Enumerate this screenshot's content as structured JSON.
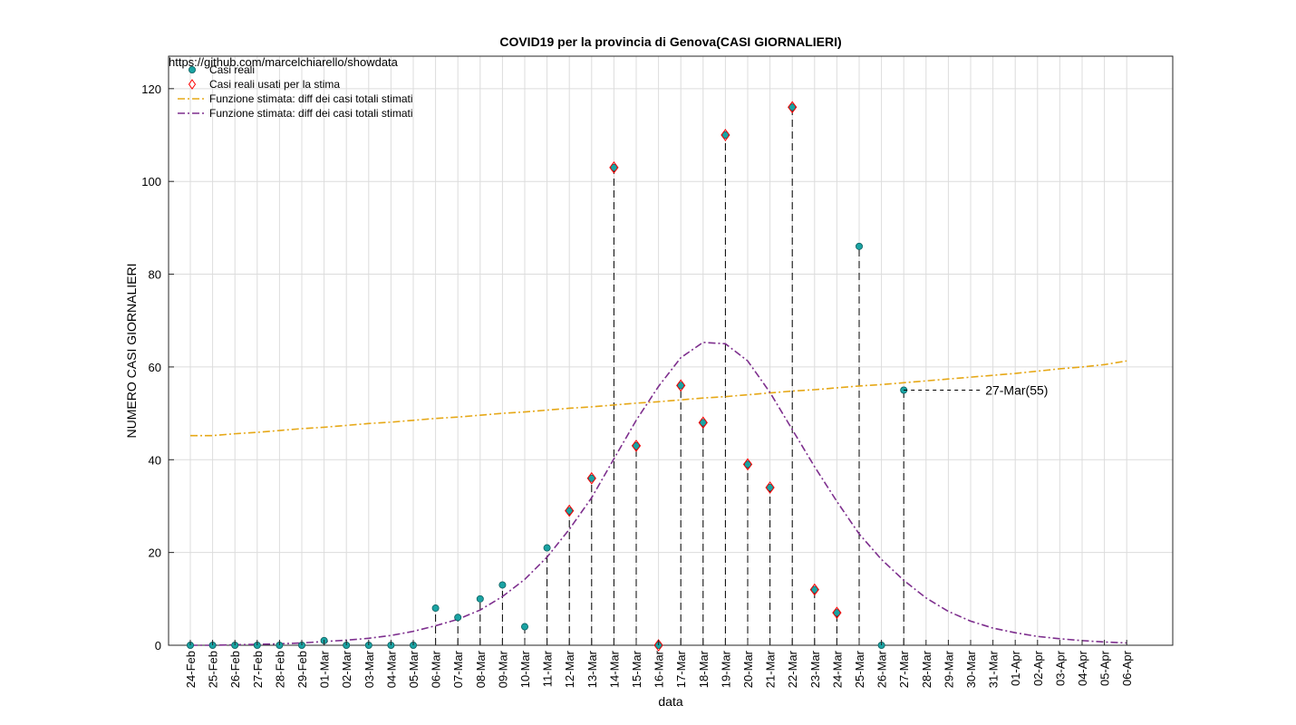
{
  "chart_data": {
    "type": "scatter",
    "title": "COVID19 per la provincia di Genova(CASI GIORNALIERI)",
    "xlabel": "data",
    "ylabel": "NUMERO CASI GIORNALIERI",
    "watermark": "https://github.com/marcelchiarello/showdata",
    "ylim": [
      0,
      127
    ],
    "yticks": [
      0,
      20,
      40,
      60,
      80,
      100,
      120
    ],
    "grid": true,
    "legend_position": "top-left",
    "categories": [
      "24-Feb",
      "25-Feb",
      "26-Feb",
      "27-Feb",
      "28-Feb",
      "29-Feb",
      "01-Mar",
      "02-Mar",
      "03-Mar",
      "04-Mar",
      "05-Mar",
      "06-Mar",
      "07-Mar",
      "08-Mar",
      "09-Mar",
      "10-Mar",
      "11-Mar",
      "12-Mar",
      "13-Mar",
      "14-Mar",
      "15-Mar",
      "16-Mar",
      "17-Mar",
      "18-Mar",
      "19-Mar",
      "20-Mar",
      "21-Mar",
      "22-Mar",
      "23-Mar",
      "24-Mar",
      "25-Mar",
      "26-Mar",
      "27-Mar",
      "28-Mar",
      "29-Mar",
      "30-Mar",
      "31-Mar",
      "01-Apr",
      "02-Apr",
      "03-Apr",
      "04-Apr",
      "05-Apr",
      "06-Apr"
    ],
    "series": [
      {
        "name": "Casi reali",
        "marker": "circle",
        "color": "#1aa3a3",
        "values": [
          0,
          0,
          0,
          0,
          0,
          0,
          1,
          0,
          0,
          0,
          0,
          8,
          6,
          10,
          13,
          4,
          21,
          29,
          36,
          103,
          43,
          0,
          56,
          48,
          110,
          39,
          34,
          116,
          12,
          7,
          86,
          0,
          55
        ]
      },
      {
        "name": "Casi reali usati per la stima",
        "marker": "diamond",
        "color": "#ff0000",
        "values": [
          null,
          null,
          null,
          null,
          null,
          null,
          null,
          null,
          null,
          null,
          null,
          null,
          null,
          null,
          null,
          null,
          null,
          29,
          36,
          103,
          43,
          0,
          56,
          48,
          110,
          39,
          34,
          116,
          12,
          7,
          null,
          null,
          null
        ]
      },
      {
        "name": "Funzione stimata: diff dei casi totali stimati",
        "style": "dash-dot",
        "color": "#e6a817",
        "values": [
          45.2,
          45.2,
          45.6,
          45.9,
          46.3,
          46.7,
          47.0,
          47.4,
          47.8,
          48.1,
          48.5,
          48.9,
          49.2,
          49.6,
          50.0,
          50.3,
          50.7,
          51.1,
          51.4,
          51.8,
          52.2,
          52.5,
          52.9,
          53.3,
          53.6,
          54.0,
          54.4,
          54.8,
          55.1,
          55.5,
          55.9,
          56.2,
          56.6,
          57.0,
          57.4,
          57.8,
          58.2,
          58.6,
          59.1,
          59.6,
          60.0,
          60.5,
          61.3
        ]
      },
      {
        "name": "Funzione stimata: diff dei casi totali stimati",
        "style": "dash-dot",
        "color": "#7e2f8e",
        "values": [
          0,
          0,
          0.1,
          0.2,
          0.3,
          0.5,
          0.8,
          1.1,
          1.5,
          2.1,
          3.0,
          4.2,
          5.6,
          7.6,
          10.5,
          14.2,
          19.0,
          25.0,
          31.8,
          40.2,
          48.5,
          55.8,
          62.0,
          65.3,
          65.0,
          61.3,
          54.5,
          46.5,
          38.5,
          31.0,
          24.0,
          18.5,
          14.0,
          10.2,
          7.3,
          5.2,
          3.7,
          2.7,
          1.9,
          1.4,
          1.0,
          0.7,
          0.5
        ]
      }
    ],
    "stems": [
      {
        "index": 6,
        "value": 1
      },
      {
        "index": 11,
        "value": 8
      },
      {
        "index": 12,
        "value": 6
      },
      {
        "index": 13,
        "value": 10
      },
      {
        "index": 14,
        "value": 13
      },
      {
        "index": 15,
        "value": 4
      },
      {
        "index": 16,
        "value": 21
      },
      {
        "index": 17,
        "value": 29
      },
      {
        "index": 18,
        "value": 36
      },
      {
        "index": 19,
        "value": 103
      },
      {
        "index": 20,
        "value": 43
      },
      {
        "index": 22,
        "value": 56
      },
      {
        "index": 23,
        "value": 48
      },
      {
        "index": 24,
        "value": 110
      },
      {
        "index": 25,
        "value": 39
      },
      {
        "index": 26,
        "value": 34
      },
      {
        "index": 27,
        "value": 116
      },
      {
        "index": 28,
        "value": 12
      },
      {
        "index": 29,
        "value": 7
      },
      {
        "index": 30,
        "value": 86
      },
      {
        "index": 32,
        "value": 55
      }
    ],
    "annotation": {
      "text": "27-Mar(55)",
      "index": 32,
      "value": 55
    }
  }
}
